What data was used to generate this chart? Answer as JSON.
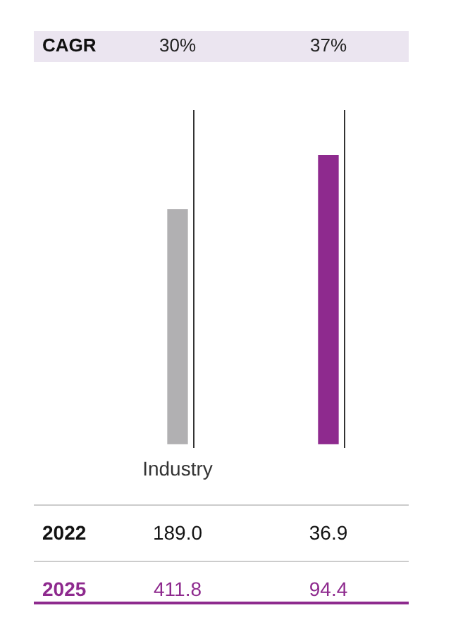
{
  "chart_data": {
    "type": "bar",
    "categories": [
      "Industry",
      null
    ],
    "values": [
      30,
      37
    ],
    "colors": [
      "#b1b0b2",
      "#8e2a8e"
    ],
    "value_labels": [
      "30%",
      "37%"
    ],
    "annotations": [
      "CAGR",
      "2022",
      "189.0",
      "36.9",
      "2025",
      "411.8",
      "94.4"
    ]
  }
}
